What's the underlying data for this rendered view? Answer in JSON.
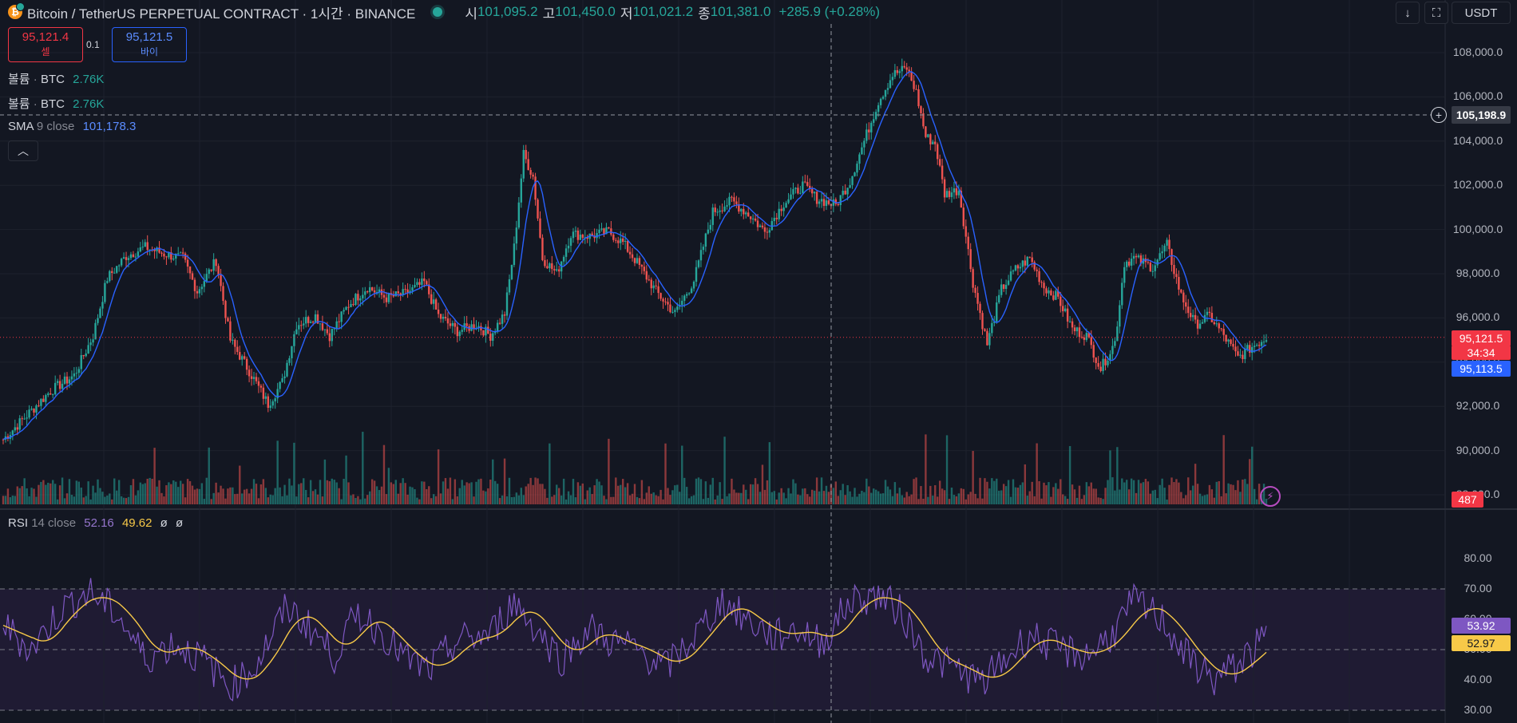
{
  "header": {
    "logo_letter": "₿",
    "title": "Bitcoin / TetherUS PERPETUAL CONTRACT · 1시간 · BINANCE",
    "ohlc": [
      {
        "label": "시",
        "value": "101,095.2"
      },
      {
        "label": "고",
        "value": "101,450.0"
      },
      {
        "label": "저",
        "value": "101,021.2"
      },
      {
        "label": "종",
        "value": "101,381.0"
      }
    ],
    "change": "+285.9 (+0.28%)"
  },
  "trade": {
    "sell_price": "95,121.4",
    "sell_label": "셀",
    "spread": "0.1",
    "buy_price": "95,121.5",
    "buy_label": "바이"
  },
  "indicators": {
    "volume1": {
      "name": "볼륨",
      "sep": "·",
      "unit": "BTC",
      "value": "2.76K"
    },
    "volume2": {
      "name": "볼륨",
      "sep": "·",
      "unit": "BTC",
      "value": "2.76K"
    },
    "sma": {
      "name": "SMA",
      "params": "9 close",
      "value": "101,178.3"
    },
    "rsi": {
      "name": "RSI",
      "params": "14 close",
      "value": "52.16",
      "ma": "49.62",
      "na1": "ø",
      "na2": "ø"
    }
  },
  "toolbar": {
    "down_icon": "arrow-down-icon",
    "expand_icon": "fullscreen-icon",
    "currency": "USDT",
    "collapse_icon": "chevron-up-icon",
    "bolt_icon": "lightning-icon"
  },
  "price_axis": {
    "ticks": [
      "108,000.0",
      "106,000.0",
      "104,000.0",
      "102,000.0",
      "100,000.0",
      "98,000.0",
      "96,000.0",
      "94,000.0",
      "92,000.0",
      "90,000.0",
      "88,000.0"
    ],
    "crosshair_price": "105,198.9",
    "last_price": "95,121.5",
    "countdown": "34:34",
    "sma_last": "95,113.5",
    "volume_last": "487"
  },
  "rsi_axis": {
    "ticks": [
      "80.00",
      "70.00",
      "60.00",
      "50.00",
      "40.00",
      "30.00"
    ],
    "rsi_last": "53.92",
    "rsi_ma_last": "52.97"
  },
  "colors": {
    "up": "#26a69a",
    "down": "#ef5350",
    "sma": "#2962ff",
    "rsi": "#7e57c2",
    "rsi_ma": "#f7c948",
    "bg": "#131722"
  },
  "chart_data": {
    "type": "candlestick",
    "symbol": "BTCUSDT.P",
    "interval": "1h",
    "price_range": [
      87500,
      109000
    ],
    "rsi_range": [
      29,
      82
    ],
    "rsi_band": [
      30,
      70
    ],
    "rsi_mid": 50,
    "last_price": 95121.5,
    "crosshair_price": 105198.9,
    "close_path": [
      [
        0,
        90500
      ],
      [
        10,
        91600
      ],
      [
        20,
        92700
      ],
      [
        30,
        93400
      ],
      [
        38,
        95200
      ],
      [
        44,
        97800
      ],
      [
        52,
        98800
      ],
      [
        60,
        99200
      ],
      [
        68,
        98900
      ],
      [
        76,
        98700
      ],
      [
        82,
        97200
      ],
      [
        90,
        98600
      ],
      [
        96,
        95000
      ],
      [
        104,
        93600
      ],
      [
        112,
        92100
      ],
      [
        118,
        93100
      ],
      [
        124,
        95700
      ],
      [
        132,
        96100
      ],
      [
        138,
        95200
      ],
      [
        146,
        96600
      ],
      [
        154,
        97400
      ],
      [
        162,
        96900
      ],
      [
        170,
        97100
      ],
      [
        178,
        97600
      ],
      [
        184,
        96100
      ],
      [
        192,
        95400
      ],
      [
        200,
        95700
      ],
      [
        206,
        95200
      ],
      [
        212,
        96200
      ],
      [
        216,
        99200
      ],
      [
        220,
        103400
      ],
      [
        224,
        102400
      ],
      [
        228,
        98700
      ],
      [
        234,
        98000
      ],
      [
        240,
        99800
      ],
      [
        248,
        99700
      ],
      [
        256,
        99900
      ],
      [
        262,
        99400
      ],
      [
        268,
        98500
      ],
      [
        276,
        97200
      ],
      [
        284,
        96200
      ],
      [
        292,
        97700
      ],
      [
        300,
        100800
      ],
      [
        308,
        101300
      ],
      [
        316,
        100600
      ],
      [
        322,
        99900
      ],
      [
        330,
        101200
      ],
      [
        338,
        102000
      ],
      [
        344,
        101400
      ],
      [
        352,
        101100
      ],
      [
        358,
        102200
      ],
      [
        364,
        104000
      ],
      [
        370,
        105800
      ],
      [
        376,
        107000
      ],
      [
        382,
        107300
      ],
      [
        386,
        106200
      ],
      [
        390,
        104200
      ],
      [
        394,
        103900
      ],
      [
        398,
        101600
      ],
      [
        404,
        101800
      ],
      [
        410,
        97600
      ],
      [
        416,
        94800
      ],
      [
        422,
        97300
      ],
      [
        428,
        98200
      ],
      [
        434,
        98700
      ],
      [
        440,
        97400
      ],
      [
        446,
        96900
      ],
      [
        452,
        95500
      ],
      [
        458,
        95200
      ],
      [
        464,
        93700
      ],
      [
        470,
        94900
      ],
      [
        474,
        98500
      ],
      [
        478,
        98700
      ],
      [
        486,
        98300
      ],
      [
        492,
        99300
      ],
      [
        498,
        97000
      ],
      [
        504,
        95700
      ],
      [
        510,
        96100
      ],
      [
        516,
        95200
      ],
      [
        522,
        94200
      ],
      [
        528,
        94700
      ],
      [
        534,
        95121.5
      ]
    ],
    "sma_last": 95113.5,
    "volume_last": 487,
    "rsi_path": [
      [
        0,
        58
      ],
      [
        12,
        50
      ],
      [
        24,
        63
      ],
      [
        36,
        69
      ],
      [
        48,
        62
      ],
      [
        60,
        47
      ],
      [
        72,
        52
      ],
      [
        84,
        47
      ],
      [
        96,
        38
      ],
      [
        106,
        44
      ],
      [
        120,
        64
      ],
      [
        130,
        57
      ],
      [
        140,
        48
      ],
      [
        150,
        62
      ],
      [
        160,
        56
      ],
      [
        170,
        47
      ],
      [
        180,
        43
      ],
      [
        192,
        53
      ],
      [
        206,
        55
      ],
      [
        216,
        66
      ],
      [
        226,
        56
      ],
      [
        236,
        47
      ],
      [
        248,
        57
      ],
      [
        256,
        53
      ],
      [
        268,
        50
      ],
      [
        280,
        44
      ],
      [
        292,
        54
      ],
      [
        304,
        66
      ],
      [
        314,
        60
      ],
      [
        326,
        54
      ],
      [
        336,
        57
      ],
      [
        346,
        52
      ],
      [
        358,
        66
      ],
      [
        370,
        68
      ],
      [
        380,
        62
      ],
      [
        390,
        48
      ],
      [
        402,
        44
      ],
      [
        414,
        39
      ],
      [
        424,
        47
      ],
      [
        434,
        55
      ],
      [
        446,
        50
      ],
      [
        458,
        48
      ],
      [
        470,
        56
      ],
      [
        478,
        66
      ],
      [
        490,
        60
      ],
      [
        500,
        48
      ],
      [
        512,
        40
      ],
      [
        522,
        45
      ],
      [
        534,
        53.92
      ]
    ],
    "rsi_last": 53.92,
    "rsi_ma_last": 52.97
  }
}
